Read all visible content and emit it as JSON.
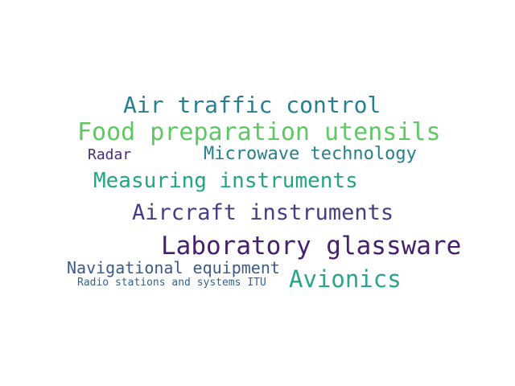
{
  "words": [
    {
      "text": "Air traffic control",
      "color": "#2a7f8e"
    },
    {
      "text": "Food preparation utensils",
      "color": "#5ec962"
    },
    {
      "text": "Radar",
      "color": "#472d7b"
    },
    {
      "text": "Microwave technology",
      "color": "#277f8e"
    },
    {
      "text": "Measuring instruments",
      "color": "#21a585"
    },
    {
      "text": "Aircraft instruments",
      "color": "#433e85"
    },
    {
      "text": "Laboratory glassware",
      "color": "#46206e"
    },
    {
      "text": "Navigational equipment",
      "color": "#3b5a8d"
    },
    {
      "text": "Radio stations and systems ITU",
      "color": "#33638d"
    },
    {
      "text": "Avionics",
      "color": "#2ba58a"
    }
  ]
}
